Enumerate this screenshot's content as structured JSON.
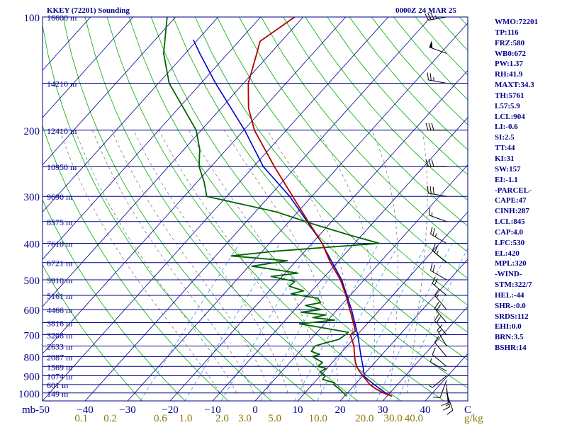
{
  "header": {
    "station": "KKEY (72201) Sounding",
    "time": "0000Z 24 MAR 25"
  },
  "stats": [
    "WMO:72201",
    "TP:116",
    "FRZ:580",
    "WB0:672",
    "PW:1.37",
    "RH:41.9",
    "MAXT:34.3",
    "TH:5761",
    "L57:5.9",
    "LCL:904",
    "LI:-0.6",
    "SI:2.5",
    "TT:44",
    "KI:31",
    "SW:157",
    "EI:-1.1",
    "-PARCEL-",
    "CAPE:47",
    "CINH:287",
    "LCL:845",
    "CAP:4.0",
    "LFC:530",
    "EL:420",
    "MPL:320",
    "-WIND-",
    "STM:322/7",
    "HEL:-44",
    "SHR-:0.0",
    "SRDS:112",
    "EHI:0.0",
    "BRN:3.5",
    "BSHR:14"
  ],
  "colors": {
    "frame": "#00008b",
    "isobar": "#00008b",
    "isotherm": "#00008b",
    "dry_adiabat": "#00aa00",
    "moist_adiabat": "#808080",
    "mixing_ratio": "#5aa0f0",
    "temperature": "#b00000",
    "dewpoint": "#006400",
    "parcel": "#0000cd",
    "wind_barb": "#000000",
    "mixing_label": "#8b7500"
  },
  "chart_data": {
    "type": "skew-t",
    "pressure_ticks": [
      {
        "p": 100,
        "label": "100"
      },
      {
        "p": 200,
        "label": "200"
      },
      {
        "p": 300,
        "label": "300"
      },
      {
        "p": 400,
        "label": "400"
      },
      {
        "p": 500,
        "label": "500"
      },
      {
        "p": 600,
        "label": "600"
      },
      {
        "p": 700,
        "label": "700"
      },
      {
        "p": 800,
        "label": "800"
      },
      {
        "p": 900,
        "label": "900"
      },
      {
        "p": 1000,
        "label": "1000"
      }
    ],
    "height_labels": [
      {
        "p": 100,
        "label": "16600 m"
      },
      {
        "p": 150,
        "label": "14210 m"
      },
      {
        "p": 200,
        "label": "12410 m"
      },
      {
        "p": 250,
        "label": "10950 m"
      },
      {
        "p": 300,
        "label": "9690 m"
      },
      {
        "p": 350,
        "label": "8575 m"
      },
      {
        "p": 400,
        "label": "7610 m"
      },
      {
        "p": 450,
        "label": "6721 m"
      },
      {
        "p": 500,
        "label": "5910 m"
      },
      {
        "p": 550,
        "label": "5161 m"
      },
      {
        "p": 600,
        "label": "4466 m"
      },
      {
        "p": 650,
        "label": "3816 m"
      },
      {
        "p": 700,
        "label": "3208 m"
      },
      {
        "p": 750,
        "label": "2633 m"
      },
      {
        "p": 800,
        "label": "2087 m"
      },
      {
        "p": 850,
        "label": "1569 m"
      },
      {
        "p": 900,
        "label": "1074 m"
      },
      {
        "p": 950,
        "label": "601 m"
      },
      {
        "p": 1000,
        "label": "149 m"
      }
    ],
    "p_axis_unit": "mb",
    "temperature_ticks": [
      {
        "t": -50,
        "label": "-50"
      },
      {
        "t": -40,
        "label": "−40"
      },
      {
        "t": -30,
        "label": "−30"
      },
      {
        "t": -20,
        "label": "−20"
      },
      {
        "t": -10,
        "label": "−10"
      },
      {
        "t": 0,
        "label": "0"
      },
      {
        "t": 10,
        "label": "10"
      },
      {
        "t": 20,
        "label": "20"
      },
      {
        "t": 30,
        "label": "30"
      },
      {
        "t": 40,
        "label": "40"
      },
      {
        "t": 50,
        "label": "C"
      }
    ],
    "mixing_ratio_ticks": [
      {
        "w": 0.1,
        "label": "0.1"
      },
      {
        "w": 0.2,
        "label": "0.2"
      },
      {
        "w": 0.6,
        "label": "0.6"
      },
      {
        "w": 1.0,
        "label": "1.0"
      },
      {
        "w": 2.0,
        "label": "2.0"
      },
      {
        "w": 3.0,
        "label": "3.0"
      },
      {
        "w": 5.0,
        "label": "5.0"
      },
      {
        "w": 10.0,
        "label": "10.0"
      },
      {
        "w": 20.0,
        "label": "20.0"
      },
      {
        "w": 30.0,
        "label": "30.0"
      },
      {
        "w": 40.0,
        "label": "40.0"
      }
    ],
    "mixing_ratio_unit": "g/kg",
    "pressure_range_mb": [
      1050,
      100
    ],
    "temperature_range_c_at_1050mb": [
      -50,
      50
    ],
    "mixing_ratio_lines_gkg": [
      0.4,
      1,
      2,
      4,
      7,
      10,
      16,
      24,
      32
    ],
    "temperature_profile": [
      {
        "p": 1020,
        "t": 31.2
      },
      {
        "p": 1000,
        "t": 28.5
      },
      {
        "p": 975,
        "t": 25.8
      },
      {
        "p": 950,
        "t": 23.5
      },
      {
        "p": 925,
        "t": 21.8
      },
      {
        "p": 900,
        "t": 20.0
      },
      {
        "p": 875,
        "t": 18.2
      },
      {
        "p": 850,
        "t": 16.6
      },
      {
        "p": 825,
        "t": 15.2
      },
      {
        "p": 800,
        "t": 14.0
      },
      {
        "p": 775,
        "t": 12.8
      },
      {
        "p": 750,
        "t": 11.6
      },
      {
        "p": 725,
        "t": 10.0
      },
      {
        "p": 700,
        "t": 8.4
      },
      {
        "p": 685,
        "t": 8.8
      },
      {
        "p": 650,
        "t": 6.5
      },
      {
        "p": 625,
        "t": 4.8
      },
      {
        "p": 600,
        "t": 2.9
      },
      {
        "p": 550,
        "t": -1.0
      },
      {
        "p": 500,
        "t": -5.6
      },
      {
        "p": 450,
        "t": -11.6
      },
      {
        "p": 400,
        "t": -17.6
      },
      {
        "p": 350,
        "t": -25.5
      },
      {
        "p": 300,
        "t": -34.5
      },
      {
        "p": 250,
        "t": -45.1
      },
      {
        "p": 200,
        "t": -57.5
      },
      {
        "p": 175,
        "t": -63.5
      },
      {
        "p": 150,
        "t": -68.9
      },
      {
        "p": 125,
        "t": -73.2
      },
      {
        "p": 116,
        "t": -75.0
      },
      {
        "p": 100,
        "t": -72.0
      }
    ],
    "dewpoint_profile": [
      {
        "p": 1020,
        "t": 20.5
      },
      {
        "p": 1000,
        "t": 19.1
      },
      {
        "p": 975,
        "t": 17.2
      },
      {
        "p": 950,
        "t": 15.0
      },
      {
        "p": 940,
        "t": 14.8
      },
      {
        "p": 920,
        "t": 11.3
      },
      {
        "p": 900,
        "t": 11.2
      },
      {
        "p": 880,
        "t": 9.1
      },
      {
        "p": 860,
        "t": 9.8
      },
      {
        "p": 850,
        "t": 7.4
      },
      {
        "p": 830,
        "t": 7.7
      },
      {
        "p": 800,
        "t": 4.1
      },
      {
        "p": 790,
        "t": 5.3
      },
      {
        "p": 775,
        "t": 2.7
      },
      {
        "p": 750,
        "t": 2.5
      },
      {
        "p": 740,
        "t": 3.7
      },
      {
        "p": 720,
        "t": 6.7
      },
      {
        "p": 700,
        "t": 7.2
      },
      {
        "p": 690,
        "t": 7.4
      },
      {
        "p": 680,
        "t": 3.8
      },
      {
        "p": 665,
        "t": -1.8
      },
      {
        "p": 655,
        "t": -5.9
      },
      {
        "p": 640,
        "t": 1.6
      },
      {
        "p": 630,
        "t": -4.1
      },
      {
        "p": 620,
        "t": -1.6
      },
      {
        "p": 610,
        "t": -8.0
      },
      {
        "p": 600,
        "t": -3.8
      },
      {
        "p": 585,
        "t": -8.4
      },
      {
        "p": 575,
        "t": -5.4
      },
      {
        "p": 560,
        "t": -7.0
      },
      {
        "p": 545,
        "t": -14.2
      },
      {
        "p": 535,
        "t": -11.9
      },
      {
        "p": 520,
        "t": -16.3
      },
      {
        "p": 505,
        "t": -16.0
      },
      {
        "p": 490,
        "t": -22.6
      },
      {
        "p": 480,
        "t": -17.0
      },
      {
        "p": 460,
        "t": -29.3
      },
      {
        "p": 445,
        "t": -22.1
      },
      {
        "p": 432,
        "t": -36.3
      },
      {
        "p": 420,
        "t": -27.3
      },
      {
        "p": 400,
        "t": -4.2
      },
      {
        "p": 380,
        "t": -13.0
      },
      {
        "p": 355,
        "t": -24.0
      },
      {
        "p": 330,
        "t": -35.0
      },
      {
        "p": 300,
        "t": -54.7
      },
      {
        "p": 275,
        "t": -58.3
      },
      {
        "p": 250,
        "t": -62.8
      },
      {
        "p": 225,
        "t": -66.3
      },
      {
        "p": 200,
        "t": -71.2
      },
      {
        "p": 150,
        "t": -87.5
      },
      {
        "p": 125,
        "t": -95.1
      },
      {
        "p": 100,
        "t": -102.0
      }
    ],
    "parcel_profile": [
      {
        "p": 1020,
        "t": 31.2
      },
      {
        "p": 1000,
        "t": 29.0
      },
      {
        "p": 950,
        "t": 24.5
      },
      {
        "p": 904,
        "t": 20.5
      },
      {
        "p": 845,
        "t": 17.8
      },
      {
        "p": 800,
        "t": 15.5
      },
      {
        "p": 700,
        "t": 10.1
      },
      {
        "p": 600,
        "t": 3.3
      },
      {
        "p": 500,
        "t": -5.3
      },
      {
        "p": 420,
        "t": -15.0
      },
      {
        "p": 400,
        "t": -17.6
      },
      {
        "p": 300,
        "t": -35.2
      },
      {
        "p": 250,
        "t": -47.7
      },
      {
        "p": 200,
        "t": -59.8
      },
      {
        "p": 150,
        "t": -76.6
      },
      {
        "p": 125,
        "t": -86.6
      },
      {
        "p": 115,
        "t": -91.0
      }
    ],
    "wind_profile": [
      {
        "p": 1000,
        "dir": 160,
        "spd": 10
      },
      {
        "p": 975,
        "dir": 170,
        "spd": 15
      },
      {
        "p": 950,
        "dir": 175,
        "spd": 10
      },
      {
        "p": 925,
        "dir": 200,
        "spd": 10
      },
      {
        "p": 900,
        "dir": 230,
        "spd": 5
      },
      {
        "p": 875,
        "dir": 300,
        "spd": 5
      },
      {
        "p": 850,
        "dir": 310,
        "spd": 10
      },
      {
        "p": 800,
        "dir": 320,
        "spd": 10
      },
      {
        "p": 750,
        "dir": 330,
        "spd": 15
      },
      {
        "p": 700,
        "dir": 320,
        "spd": 20
      },
      {
        "p": 650,
        "dir": 320,
        "spd": 20
      },
      {
        "p": 600,
        "dir": 320,
        "spd": 15
      },
      {
        "p": 550,
        "dir": 310,
        "spd": 20
      },
      {
        "p": 500,
        "dir": 300,
        "spd": 20
      },
      {
        "p": 450,
        "dir": 310,
        "spd": 25
      },
      {
        "p": 400,
        "dir": 300,
        "spd": 25
      },
      {
        "p": 350,
        "dir": 290,
        "spd": 15
      },
      {
        "p": 300,
        "dir": 280,
        "spd": 30
      },
      {
        "p": 250,
        "dir": 270,
        "spd": 30
      },
      {
        "p": 200,
        "dir": 270,
        "spd": 30
      },
      {
        "p": 150,
        "dir": 280,
        "spd": 25
      },
      {
        "p": 125,
        "dir": 290,
        "spd": 50
      },
      {
        "p": 100,
        "dir": 260,
        "spd": 35
      }
    ]
  }
}
